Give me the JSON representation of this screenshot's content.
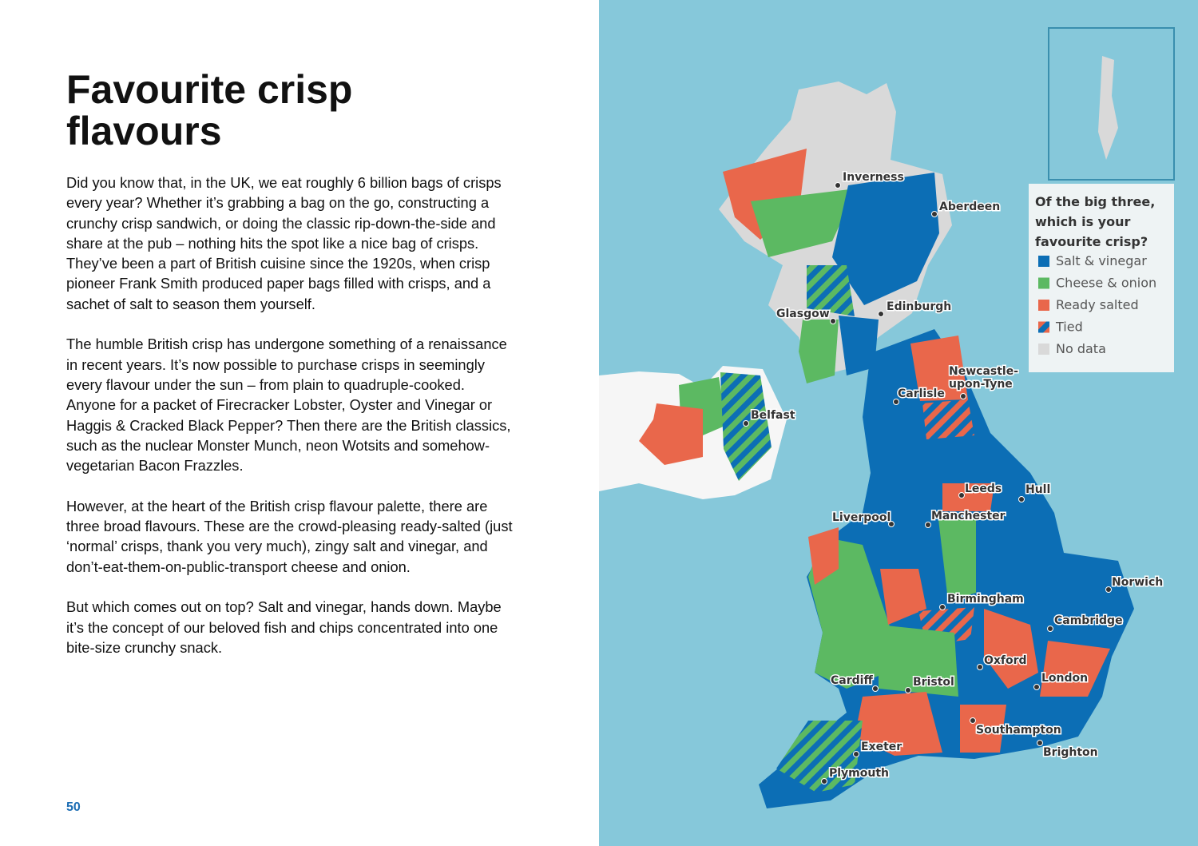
{
  "header": {
    "title": "Favourite crisp flavours"
  },
  "paragraphs": [
    "Did you know that, in the UK, we eat roughly 6 billion bags of crisps every year? Whether it’s grabbing a bag on the go, constructing a crunchy crisp sandwich, or doing the classic rip-down-the-side and share at the pub – nothing hits the spot like a nice bag of crisps. They’ve been a part of British cuisine since the 1920s, when crisp pioneer Frank Smith produced paper bags filled with crisps, and a sachet of salt to season them yourself.",
    "The humble British crisp has undergone something of a renaissance in recent years. It’s now possible to purchase crisps in seemingly every flavour under the sun – from plain to quadruple-cooked. Anyone for a packet of Firecracker Lobster, Oyster and Vinegar or Haggis & Cracked Black Pepper? Then there are the British classics, such as the nuclear Monster Munch, neon Wotsits and somehow-vegetarian Bacon Frazzles.",
    "However, at the heart of the British crisp flavour palette, there are three broad flavours. These are the crowd-pleasing ready-salted (just ‘normal’ crisps, thank you very much), zingy salt and vinegar, and don’t-eat-them-on-public-transport cheese and onion.",
    "But which comes out on top? Salt and vinegar, hands down. Maybe it’s the concept of our beloved fish and chips concentrated into one bite-size crunchy snack."
  ],
  "page_number": "50",
  "map": {
    "legend": {
      "title": [
        "Of the big three,",
        "which is your",
        "favourite crisp?"
      ],
      "items": [
        "Salt & vinegar",
        "Cheese & onion",
        "Ready salted",
        "Tied",
        "No data"
      ]
    },
    "cities": [
      "Inverness",
      "Aberdeen",
      "Glasgow",
      "Edinburgh",
      "Newcastle-",
      "upon-Tyne",
      "Carlisle",
      "Belfast",
      "Leeds",
      "Hull",
      "Liverpool",
      "Manchester",
      "Norwich",
      "Birmingham",
      "Cambridge",
      "Oxford",
      "Cardiff",
      "Bristol",
      "London",
      "Southampton",
      "Exeter",
      "Brighton",
      "Plymouth"
    ]
  }
}
